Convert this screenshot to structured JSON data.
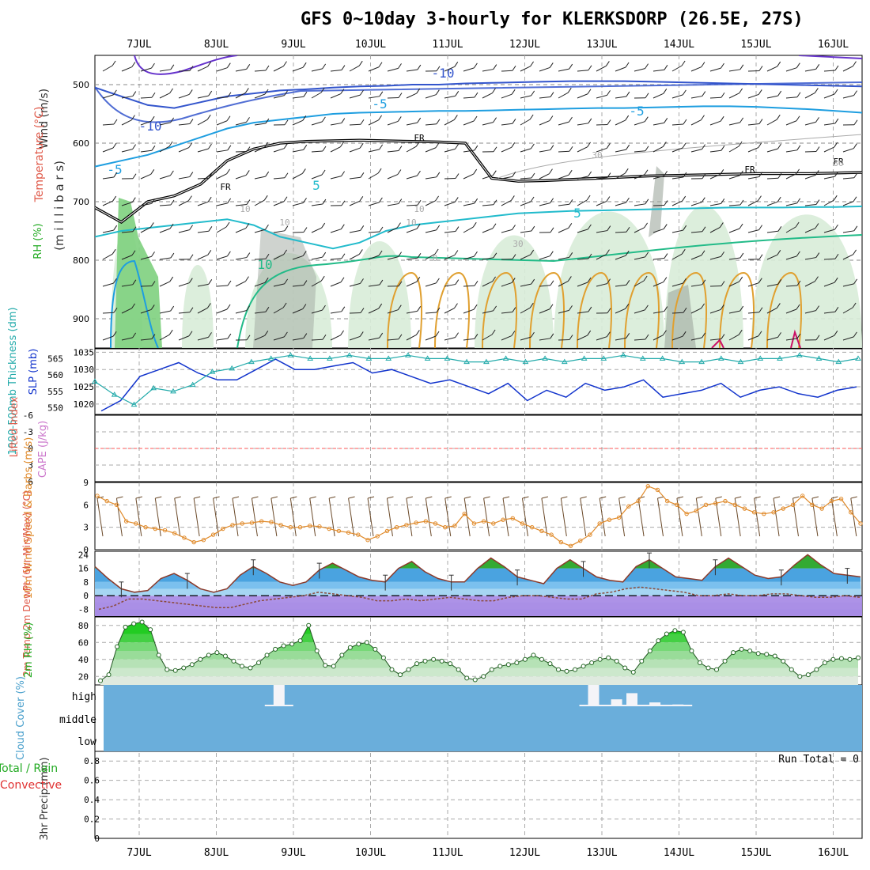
{
  "title": "GFS 0~10day 3-hourly for KLERKSDORP (26.5E, 27S)",
  "dates": [
    "7JUL",
    "8JUL",
    "9JUL",
    "10JUL",
    "11JUL",
    "12JUL",
    "13JUL",
    "14JUL",
    "15JUL",
    "16JUL"
  ],
  "colors": {
    "temp_cold": "#6633cc",
    "temp_m10": "#3355cc",
    "temp_m5": "#1e9ee0",
    "temp_5": "#22bbcc",
    "temp_10": "#22bb88",
    "temp_warm": "#e0a030",
    "rh_fill": "#d8ecd8",
    "rh_fill2": "#9fa89f",
    "sfc_rh": "#22cc22",
    "cloud_bg": "#6aaedb",
    "cape": "#ff5555",
    "slp": "#1133cc",
    "thick": "#22aaaa",
    "wind": "#e08a2a"
  },
  "chart_data": [
    {
      "name": "upper_air",
      "type": "contour",
      "yaxis_labels": {
        "a": "Wind (m/s)",
        "b": "Temperature (°C)",
        "c": "RH (%)",
        "d": "(m i l l i b a r s)"
      },
      "ytick_labels": [
        "500",
        "600",
        "700",
        "800",
        "900"
      ],
      "contour_labels": [
        "-10",
        "-10",
        "-5",
        "-5",
        "-5",
        "5",
        "5",
        "10",
        "FR",
        "FR",
        "FR",
        "FR",
        "10",
        "10",
        "10",
        "10",
        "30",
        "30",
        "30",
        "0"
      ],
      "isotherm_minus10": [
        505,
        520,
        535,
        540,
        530,
        520,
        515,
        510,
        508,
        505,
        503,
        502,
        500,
        500,
        498,
        497,
        496,
        495,
        494,
        494,
        494,
        495,
        496,
        497,
        498,
        499,
        500,
        501,
        502,
        503
      ],
      "isotherm_minus5": [
        640,
        630,
        620,
        605,
        590,
        575,
        565,
        560,
        555,
        550,
        548,
        547,
        546,
        545,
        545,
        544,
        543,
        542,
        541,
        540,
        540,
        539,
        538,
        537,
        537,
        538,
        540,
        542,
        545,
        548
      ],
      "freezing_level": [
        710,
        735,
        700,
        690,
        670,
        630,
        610,
        600,
        597,
        596,
        595,
        596,
        597,
        598,
        600,
        660,
        665,
        664,
        662,
        660,
        658,
        656,
        655,
        654,
        653,
        652,
        652,
        652,
        651,
        650
      ],
      "isotherm_5": [
        760,
        750,
        745,
        740,
        735,
        730,
        740,
        760,
        770,
        780,
        770,
        750,
        740,
        735,
        730,
        725,
        720,
        718,
        716,
        715,
        714,
        713,
        712,
        711,
        710,
        710,
        710,
        709,
        709,
        708
      ]
    },
    {
      "name": "slp_thickness",
      "type": "line",
      "ylabel": "1000-500mb Thickness (dm)",
      "ylabel2": "SLP (mb)",
      "ytick_labels_left": [
        "565",
        "560",
        "555",
        "550"
      ],
      "ytick_labels_right": [
        "1035",
        "1030",
        "1025",
        "1020"
      ],
      "ylim_slp": [
        1017,
        1036
      ],
      "ylim_thick": [
        548,
        568
      ],
      "slp": [
        1018,
        1021,
        1028,
        1030,
        1032,
        1029,
        1027,
        1027,
        1030,
        1033,
        1030,
        1030,
        1031,
        1032,
        1029,
        1030,
        1028,
        1026,
        1027,
        1025,
        1023,
        1026,
        1021,
        1024,
        1022,
        1026,
        1024,
        1025,
        1027,
        1022,
        1023,
        1024,
        1026,
        1022,
        1024,
        1025,
        1023,
        1022,
        1024,
        1025
      ],
      "thickness": [
        558,
        554,
        551,
        556,
        555,
        557,
        561,
        562,
        564,
        565,
        566,
        565,
        565,
        566,
        565,
        565,
        566,
        565,
        565,
        564,
        564,
        565,
        564,
        565,
        564,
        565,
        565,
        566,
        565,
        565,
        564,
        564,
        565,
        564,
        565,
        565,
        566,
        565,
        564,
        565
      ]
    },
    {
      "name": "lifted_cape",
      "type": "line",
      "ylabel": "Lifted Index",
      "ylabel2": "CAPE (J/kg)",
      "ytick_labels": [
        "-6",
        "-3",
        "0",
        "3",
        "6"
      ],
      "ylim": [
        -6,
        6
      ],
      "cape_line": 0
    },
    {
      "name": "wind10m",
      "type": "line",
      "ylabel": "10m Wind Speed & Barbs (m/s)",
      "ytick_labels": [
        "9",
        "6",
        "3",
        "0"
      ],
      "ylim": [
        0,
        9
      ],
      "values": [
        7.2,
        6.5,
        6.0,
        3.8,
        3.5,
        3.0,
        2.8,
        2.6,
        2.2,
        1.6,
        1.0,
        1.3,
        2.0,
        2.8,
        3.3,
        3.5,
        3.6,
        3.8,
        3.7,
        3.3,
        3.0,
        3.0,
        3.2,
        3.1,
        2.8,
        2.5,
        2.3,
        2.0,
        1.3,
        1.8,
        2.5,
        3.0,
        3.3,
        3.6,
        3.8,
        3.5,
        3.0,
        3.2,
        4.8,
        3.5,
        3.8,
        3.5,
        4.0,
        4.2,
        3.5,
        3.0,
        2.5,
        2.0,
        1.0,
        0.5,
        1.2,
        2.0,
        3.5,
        4.0,
        4.3,
        5.8,
        6.5,
        8.5,
        8.0,
        6.5,
        6.0,
        4.8,
        5.2,
        6.0,
        6.2,
        6.5,
        6.0,
        5.5,
        5.0,
        4.8,
        5.0,
        5.5,
        6.0,
        7.2,
        6.0,
        5.5,
        6.5,
        6.8,
        5.0,
        3.5
      ]
    },
    {
      "name": "temp2m",
      "type": "area",
      "ylabel": "2m Temp 2m DewPt (6hr Min/Max) (°C)",
      "ytick_labels": [
        "24",
        "16",
        "8",
        "0",
        "-8"
      ],
      "ylim": [
        -12,
        26
      ],
      "temp": [
        17,
        10,
        4,
        2,
        3,
        10,
        13,
        9,
        4,
        2,
        4,
        12,
        17,
        13,
        8,
        6,
        8,
        15,
        19,
        15,
        11,
        9,
        8,
        16,
        20,
        14,
        10,
        8,
        8,
        16,
        22,
        17,
        11,
        9,
        7,
        16,
        21,
        16,
        11,
        9,
        8,
        17,
        21,
        16,
        11,
        10,
        9,
        17,
        22,
        17,
        12,
        10,
        11,
        18,
        24,
        18,
        13,
        12,
        11
      ],
      "dewpt": [
        -8,
        -6,
        -2,
        -2,
        -3,
        -4,
        -5,
        -6,
        -7,
        -7,
        -5,
        -3,
        -2,
        -1,
        0,
        2,
        1,
        0,
        -1,
        -3,
        -3,
        -2,
        -3,
        -2,
        -1,
        -2,
        -3,
        -3,
        -1,
        0,
        0,
        -1,
        -2,
        -2,
        1,
        2,
        4,
        5,
        4,
        3,
        2,
        0,
        0,
        1,
        0,
        0,
        1,
        1,
        0,
        -1,
        -1,
        0,
        -1
      ]
    },
    {
      "name": "rh2m",
      "type": "area",
      "ylabel": "2m RH (%)",
      "ytick_labels": [
        "80",
        "60",
        "40",
        "20"
      ],
      "ylim": [
        10,
        90
      ],
      "values": [
        15,
        22,
        55,
        78,
        82,
        84,
        75,
        45,
        28,
        27,
        30,
        34,
        40,
        45,
        48,
        44,
        38,
        32,
        30,
        36,
        45,
        52,
        56,
        58,
        62,
        80,
        50,
        33,
        32,
        45,
        54,
        58,
        60,
        52,
        42,
        28,
        22,
        28,
        35,
        38,
        40,
        38,
        35,
        28,
        18,
        16,
        20,
        28,
        32,
        34,
        36,
        40,
        45,
        40,
        35,
        28,
        26,
        28,
        32,
        36,
        40,
        42,
        38,
        30,
        25,
        38,
        50,
        62,
        70,
        74,
        72,
        50,
        36,
        30,
        28,
        38,
        48,
        52,
        50,
        47,
        46,
        44,
        38,
        28,
        20,
        22,
        28,
        36,
        40,
        41,
        40,
        42
      ]
    },
    {
      "name": "cloud_cover",
      "type": "bar",
      "ylabel": "Cloud Cover (%)",
      "ytick_labels": [
        "high",
        "middle",
        "low"
      ],
      "high_cloud": [
        {
          "x": 2.4,
          "value": 100
        },
        {
          "x": 6.5,
          "value": 100
        },
        {
          "x": 6.8,
          "value": 30
        },
        {
          "x": 7.0,
          "value": 60
        },
        {
          "x": 7.3,
          "value": 15
        },
        {
          "x": 7.6,
          "value": 5
        }
      ]
    },
    {
      "name": "precip3hr",
      "type": "bar",
      "ylabel": "3hr Precip (mm)",
      "legend_a": "Total / Rain",
      "legend_b": "Convective",
      "ytick_labels": [
        "0.8",
        "0.6",
        "0.4",
        "0.2",
        "0"
      ],
      "ylim": [
        0,
        0.9
      ],
      "run_total": "Run Total = 0"
    }
  ]
}
